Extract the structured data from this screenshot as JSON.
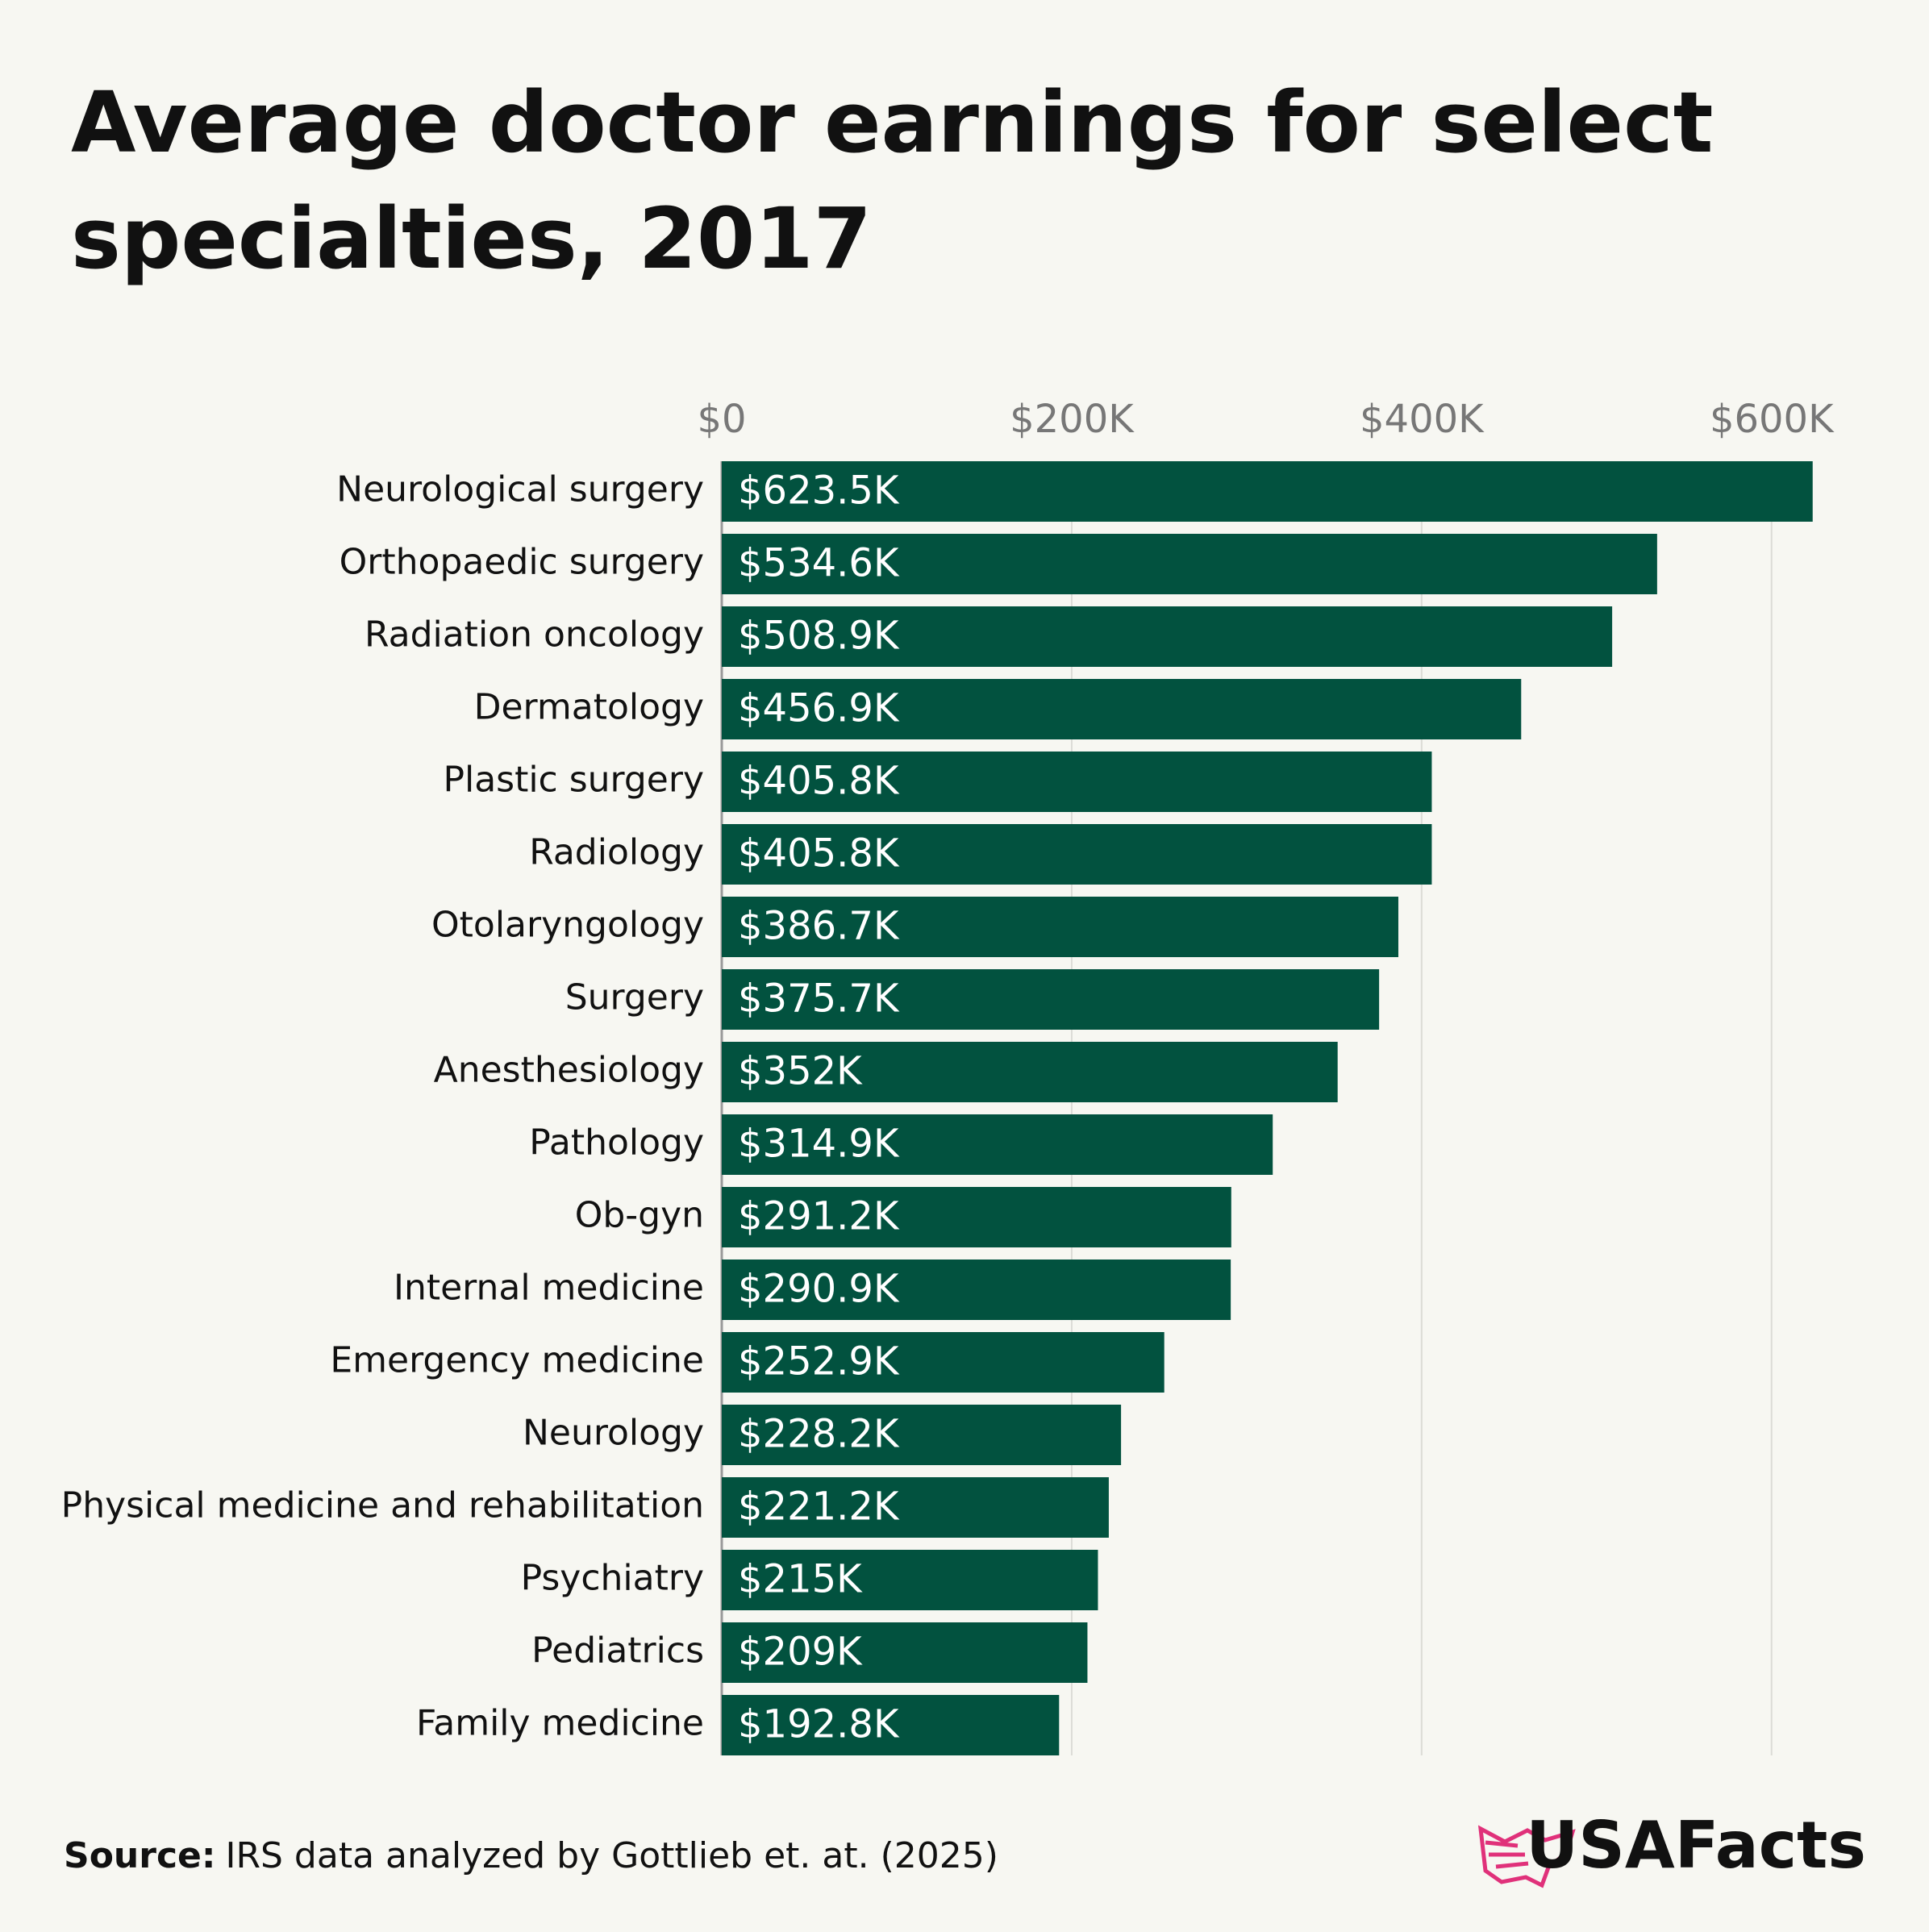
{
  "chart_data": {
    "type": "bar",
    "orientation": "horizontal",
    "title": "Average doctor earnings for select specialties, 2017",
    "categories": [
      "Neurological surgery",
      "Orthopaedic surgery",
      "Radiation oncology",
      "Dermatology",
      "Plastic surgery",
      "Radiology",
      "Otolaryngology",
      "Surgery",
      "Anesthesiology",
      "Pathology",
      "Ob-gyn",
      "Internal medicine",
      "Emergency medicine",
      "Neurology",
      "Physical medicine and rehabilitation",
      "Psychiatry",
      "Pediatrics",
      "Family medicine"
    ],
    "values": [
      623500,
      534600,
      508900,
      456900,
      405800,
      405800,
      386700,
      375700,
      352000,
      314900,
      291200,
      290900,
      252900,
      228200,
      221200,
      215000,
      209000,
      192800
    ],
    "value_labels": [
      "$623.5K",
      "$534.6K",
      "$508.9K",
      "$456.9K",
      "$405.8K",
      "$405.8K",
      "$386.7K",
      "$375.7K",
      "$352K",
      "$314.9K",
      "$291.2K",
      "$290.9K",
      "$252.9K",
      "$228.2K",
      "$221.2K",
      "$215K",
      "$209K",
      "$192.8K"
    ],
    "color": "#02523f",
    "xlim": [
      0,
      625000
    ],
    "xticks": [
      {
        "value": 0,
        "label": "$0"
      },
      {
        "value": 200000,
        "label": "$200K"
      },
      {
        "value": 400000,
        "label": "$400K"
      },
      {
        "value": 600000,
        "label": "$600K"
      }
    ],
    "grid": true,
    "source_label": "Source:",
    "source": "IRS data analyzed by Gottlieb et. at. (2025)",
    "brand": "USAFacts"
  }
}
